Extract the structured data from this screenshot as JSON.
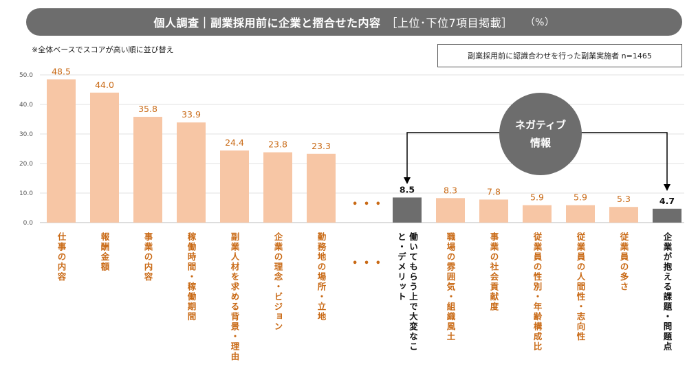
{
  "title": {
    "main": "個人調査｜副業採用前に企業と摺合せた内容",
    "sub": "［上位･下位7項目掲載］",
    "unit": "（%）"
  },
  "note": "※全体ベースでスコアが高い順に並び替え",
  "sample": "副業採用前に認識合わせを行った副業実施者 n=1465",
  "badge": {
    "line1": "ネガティブ",
    "line2": "情報"
  },
  "ellipsis": "• • •",
  "colors": {
    "positive": "#f7c6a5",
    "negative": "#6d6d6d",
    "label_orange": "#c96a16"
  },
  "chart_data": {
    "type": "bar",
    "ylim": [
      0,
      50
    ],
    "yticks": [
      "0.0",
      "10.0",
      "20.0",
      "30.0",
      "40.0",
      "50.0"
    ],
    "grid": true,
    "categories": [
      "仕事の内容",
      "報酬金額",
      "事業の内容",
      "稼働時間・稼働期間",
      "副業人材を求める背景・理由",
      "企業の理念・ビジョン",
      "勤務地の場所・立地",
      "働いてもらう上で大変なこと・デメリット",
      "職場の雰囲気・組織風土",
      "事業の社会貢献度",
      "従業員の性別・年齢構成比",
      "従業員の人間性・志向性",
      "従業員の多さ",
      "企業が抱える課題・問題点"
    ],
    "values": [
      48.5,
      44.0,
      35.8,
      33.9,
      24.4,
      23.8,
      23.3,
      8.5,
      8.3,
      7.8,
      5.9,
      5.9,
      5.3,
      4.7
    ],
    "value_labels": [
      "48.5",
      "44.0",
      "35.8",
      "33.9",
      "24.4",
      "23.8",
      "23.3",
      "8.5",
      "8.3",
      "7.8",
      "5.9",
      "5.9",
      "5.3",
      "4.7"
    ],
    "highlight": [
      false,
      false,
      false,
      false,
      false,
      false,
      false,
      true,
      false,
      false,
      false,
      false,
      false,
      true
    ]
  }
}
